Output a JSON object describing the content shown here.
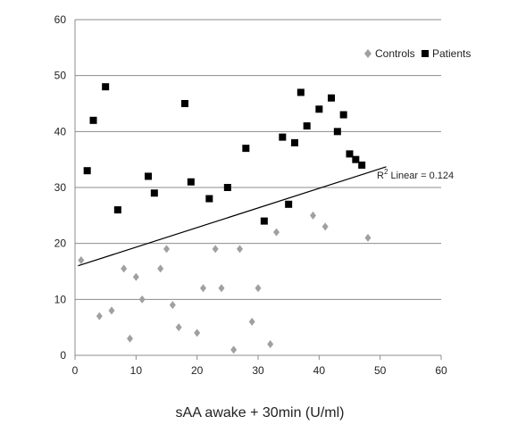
{
  "chart_data": {
    "type": "scatter",
    "title": "",
    "xlabel": "sAA awake + 30min (U/ml)",
    "ylabel": "",
    "xlim": [
      0,
      60
    ],
    "ylim": [
      0,
      60
    ],
    "x_ticks": [
      "0",
      "10",
      "20",
      "30",
      "40",
      "50",
      "60"
    ],
    "y_ticks": [
      "0",
      "10",
      "20",
      "30",
      "40",
      "50",
      "60"
    ],
    "grid": "horizontal",
    "legend_position": "top-right",
    "series": [
      {
        "name": "Controls",
        "marker": "diamond",
        "color": "#a0a0a0",
        "points": [
          [
            1,
            17
          ],
          [
            4,
            7
          ],
          [
            6,
            8
          ],
          [
            8,
            15.5
          ],
          [
            9,
            3
          ],
          [
            10,
            14
          ],
          [
            11,
            10
          ],
          [
            14,
            15.5
          ],
          [
            15,
            19
          ],
          [
            16,
            9
          ],
          [
            17,
            5
          ],
          [
            20,
            4
          ],
          [
            21,
            12
          ],
          [
            23,
            19
          ],
          [
            24,
            12
          ],
          [
            26,
            1
          ],
          [
            27,
            19
          ],
          [
            29,
            6
          ],
          [
            30,
            12
          ],
          [
            32,
            2
          ],
          [
            33,
            22
          ],
          [
            39,
            25
          ],
          [
            41,
            23
          ],
          [
            48,
            21
          ]
        ]
      },
      {
        "name": "Patients",
        "marker": "square",
        "color": "#000000",
        "points": [
          [
            2,
            33
          ],
          [
            3,
            42
          ],
          [
            5,
            48
          ],
          [
            7,
            26
          ],
          [
            12,
            32
          ],
          [
            13,
            29
          ],
          [
            18,
            45
          ],
          [
            19,
            31
          ],
          [
            22,
            28
          ],
          [
            25,
            30
          ],
          [
            28,
            37
          ],
          [
            31,
            24
          ],
          [
            34,
            39
          ],
          [
            35,
            27
          ],
          [
            36,
            38
          ],
          [
            37,
            47
          ],
          [
            38,
            41
          ],
          [
            40,
            44
          ],
          [
            42,
            46
          ],
          [
            43,
            40
          ],
          [
            44,
            43
          ],
          [
            45,
            36
          ],
          [
            46,
            35
          ],
          [
            47,
            34
          ]
        ]
      }
    ],
    "trendline": {
      "type": "linear",
      "x_start": 0.5,
      "y_start": 16,
      "x_end": 51,
      "y_end": 33.7,
      "label_r": "R",
      "label_sup": "2",
      "label_rest": " Linear =  0.124"
    }
  }
}
